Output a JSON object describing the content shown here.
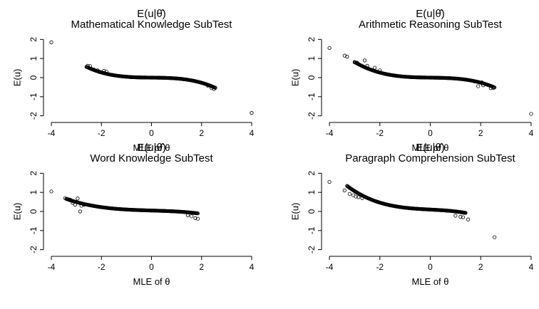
{
  "chart_data": [
    {
      "type": "scatter",
      "title_line1": "E(u|θ̂)",
      "title": "Mathematical Knowledge SubTest",
      "xlabel": "MLE of θ",
      "ylabel": "E(u)",
      "xlim": [
        -4.2,
        4.2
      ],
      "ylim": [
        -2.2,
        2.2
      ],
      "xticks": [
        -4,
        -2,
        0,
        2,
        4
      ],
      "yticks": [
        -2,
        -1,
        0,
        1,
        2
      ],
      "curve": {
        "x_range": [
          -2.6,
          2.55
        ],
        "a": 0.0,
        "b": -0.015,
        "c": -0.03
      },
      "points": [
        [
          -4,
          1.85
        ],
        [
          4,
          -1.85
        ],
        [
          -2.55,
          0.62
        ],
        [
          -2.45,
          0.6
        ],
        [
          -2.3,
          0.42
        ],
        [
          -2.15,
          0.38
        ],
        [
          -2.05,
          0.3
        ],
        [
          -1.9,
          0.35
        ],
        [
          -1.8,
          0.32
        ],
        [
          2.25,
          -0.42
        ],
        [
          2.4,
          -0.55
        ],
        [
          2.5,
          -0.6
        ]
      ]
    },
    {
      "type": "scatter",
      "title_line1": "E(u|θ̂)",
      "title": "Arithmetic Reasoning SubTest",
      "xlabel": "MLE of θ",
      "ylabel": "E(u)",
      "xlim": [
        -4.2,
        4.2
      ],
      "ylim": [
        -2.2,
        2.2
      ],
      "xticks": [
        -4,
        -2,
        0,
        2,
        4
      ],
      "yticks": [
        -2,
        -1,
        0,
        1,
        2
      ],
      "curve": {
        "x_range": [
          -3.0,
          2.55
        ],
        "a": 0.0,
        "b": -0.02,
        "c": -0.028
      },
      "points": [
        [
          -4,
          1.55
        ],
        [
          4,
          -1.9
        ],
        [
          -3.4,
          1.15
        ],
        [
          -3.3,
          1.1
        ],
        [
          -3.0,
          0.8
        ],
        [
          -2.9,
          0.78
        ],
        [
          -2.6,
          0.9
        ],
        [
          -2.5,
          0.62
        ],
        [
          -2.2,
          0.52
        ],
        [
          -2.0,
          0.38
        ],
        [
          1.75,
          -0.2
        ],
        [
          1.9,
          -0.45
        ],
        [
          2.05,
          -0.25
        ],
        [
          2.1,
          -0.4
        ],
        [
          2.4,
          -0.55
        ],
        [
          2.5,
          -0.55
        ]
      ]
    },
    {
      "type": "scatter",
      "title_line1": "E(u|θ̂)",
      "title": "Word Knowledge SubTest",
      "xlabel": "MLE of θ",
      "ylabel": "E(u)",
      "xlim": [
        -4.2,
        4.2
      ],
      "ylim": [
        -2.2,
        2.2
      ],
      "xticks": [
        -4,
        -2,
        0,
        2,
        4
      ],
      "yticks": [
        -2,
        -1,
        0,
        1,
        2
      ],
      "curve": {
        "x_range": [
          -3.4,
          1.85
        ],
        "a": 0.05,
        "b": -0.04,
        "c": -0.012
      },
      "points": [
        [
          -4,
          1.05
        ],
        [
          -3.45,
          0.7
        ],
        [
          -3.35,
          0.65
        ],
        [
          -3.25,
          0.62
        ],
        [
          -3.15,
          0.45
        ],
        [
          -3.05,
          0.35
        ],
        [
          -2.95,
          0.68
        ],
        [
          -2.85,
          0.0
        ],
        [
          -2.8,
          0.3
        ],
        [
          -2.7,
          0.35
        ],
        [
          1.45,
          -0.2
        ],
        [
          1.6,
          -0.25
        ],
        [
          1.75,
          -0.35
        ],
        [
          1.85,
          -0.38
        ]
      ]
    },
    {
      "type": "scatter",
      "title_line1": "E(u|θ̂)",
      "title": "Paragraph Comprehension SubTest",
      "xlabel": "MLE of θ",
      "ylabel": "E(u)",
      "xlim": [
        -4.2,
        4.2
      ],
      "ylim": [
        -2.2,
        2.2
      ],
      "xticks": [
        -4,
        -2,
        0,
        2,
        4
      ],
      "yticks": [
        -2,
        -1,
        0,
        1,
        2
      ],
      "curve": {
        "x_range": [
          -3.3,
          1.4
        ],
        "a": 0.1,
        "b": -0.07,
        "c": -0.028
      },
      "points": [
        [
          -4,
          1.55
        ],
        [
          -3.4,
          1.1
        ],
        [
          -3.2,
          0.92
        ],
        [
          -3.05,
          0.85
        ],
        [
          -2.95,
          0.78
        ],
        [
          -2.85,
          0.75
        ],
        [
          -2.7,
          0.7
        ],
        [
          1.0,
          -0.22
        ],
        [
          1.2,
          -0.28
        ],
        [
          1.3,
          -0.3
        ],
        [
          1.5,
          -0.42
        ],
        [
          2.55,
          -1.35
        ]
      ]
    }
  ]
}
